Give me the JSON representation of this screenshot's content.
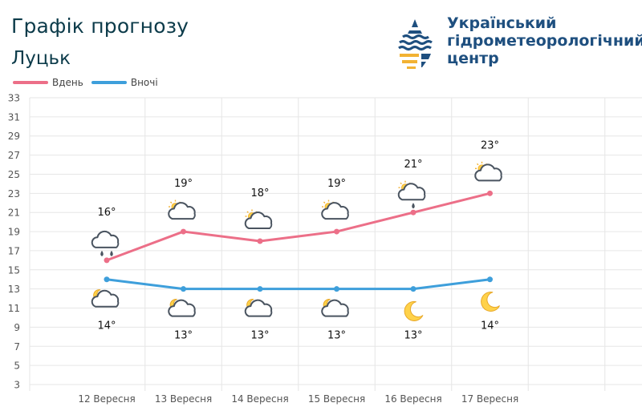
{
  "header": {
    "title": "Графік прогнозу",
    "city": "Луцьк"
  },
  "organization": {
    "name_lines": [
      "Український",
      "гідрометеорологічний",
      "центр"
    ]
  },
  "legend": {
    "day_label": "Вдень",
    "night_label": "Вночі"
  },
  "colors": {
    "day": "#ec6f88",
    "night": "#3e9fdb",
    "grid": "#e6e6e6",
    "logo_dark": "#1e4f7f",
    "logo_accent": "#f2b233"
  },
  "chart_data": {
    "type": "line",
    "categories": [
      "12 Вересня",
      "13 Вересня",
      "14 Вересня",
      "15 Вересня",
      "16 Вересня",
      "17 Вересня"
    ],
    "yticks": [
      3,
      5,
      7,
      9,
      11,
      13,
      15,
      17,
      19,
      21,
      23,
      25,
      27,
      29,
      31,
      33
    ],
    "ylim": [
      3,
      33
    ],
    "grid": true,
    "legend_position": "top-left",
    "series": [
      {
        "name": "Вдень",
        "values": [
          16,
          19,
          18,
          19,
          21,
          23
        ],
        "labels": [
          "16°",
          "19°",
          "18°",
          "19°",
          "21°",
          "23°"
        ],
        "icons": [
          "cloud-rain-icon",
          "partly-cloudy-day-icon",
          "partly-cloudy-day-icon",
          "partly-cloudy-day-icon",
          "cloud-sun-rain-icon",
          "partly-cloudy-day-icon"
        ]
      },
      {
        "name": "Вночі",
        "values": [
          14,
          13,
          13,
          13,
          13,
          14
        ],
        "labels": [
          "14°",
          "13°",
          "13°",
          "13°",
          "13°",
          "14°"
        ],
        "icons": [
          "partly-cloudy-night-icon",
          "partly-cloudy-night-icon",
          "partly-cloudy-night-icon",
          "partly-cloudy-night-icon",
          "moon-icon",
          "moon-icon"
        ]
      }
    ]
  }
}
